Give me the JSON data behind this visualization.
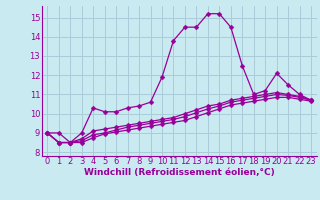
{
  "background_color": "#c8eaf0",
  "grid_color": "#aaccd8",
  "line_color": "#990099",
  "marker": "D",
  "marker_size": 2.5,
  "xlabel": "Windchill (Refroidissement éolien,°C)",
  "xlabel_fontsize": 6.5,
  "xlim": [
    -0.5,
    23.5
  ],
  "ylim": [
    7.8,
    15.6
  ],
  "yticks": [
    8,
    9,
    10,
    11,
    12,
    13,
    14,
    15
  ],
  "xticks": [
    0,
    1,
    2,
    3,
    4,
    5,
    6,
    7,
    8,
    9,
    10,
    11,
    12,
    13,
    14,
    15,
    16,
    17,
    18,
    19,
    20,
    21,
    22,
    23
  ],
  "tick_fontsize": 6.0,
  "curves": [
    {
      "x": [
        0,
        1,
        2,
        3,
        4,
        5,
        6,
        7,
        8,
        9,
        10,
        11,
        12,
        13,
        14,
        15,
        16,
        17,
        18,
        19,
        20,
        21,
        22,
        23
      ],
      "y": [
        9.0,
        9.0,
        8.5,
        9.0,
        10.3,
        10.1,
        10.1,
        10.3,
        10.4,
        10.6,
        11.9,
        13.8,
        14.5,
        14.5,
        15.2,
        15.2,
        14.5,
        12.5,
        11.0,
        11.2,
        12.1,
        11.5,
        11.0,
        10.7
      ]
    },
    {
      "x": [
        0,
        1,
        2,
        3,
        4,
        5,
        6,
        7,
        8,
        9,
        10,
        11,
        12,
        13,
        14,
        15,
        16,
        17,
        18,
        19,
        20,
        21,
        22,
        23
      ],
      "y": [
        9.0,
        8.5,
        8.5,
        8.7,
        9.1,
        9.2,
        9.3,
        9.4,
        9.5,
        9.6,
        9.7,
        9.8,
        10.0,
        10.2,
        10.4,
        10.5,
        10.7,
        10.8,
        10.9,
        11.0,
        11.1,
        11.0,
        10.9,
        10.7
      ]
    },
    {
      "x": [
        0,
        1,
        2,
        3,
        4,
        5,
        6,
        7,
        8,
        9,
        10,
        11,
        12,
        13,
        14,
        15,
        16,
        17,
        18,
        19,
        20,
        21,
        22,
        23
      ],
      "y": [
        9.0,
        8.5,
        8.5,
        8.6,
        8.9,
        9.0,
        9.15,
        9.3,
        9.4,
        9.5,
        9.6,
        9.7,
        9.85,
        10.05,
        10.25,
        10.4,
        10.6,
        10.7,
        10.8,
        10.9,
        11.0,
        10.95,
        10.85,
        10.7
      ]
    },
    {
      "x": [
        0,
        1,
        2,
        3,
        4,
        5,
        6,
        7,
        8,
        9,
        10,
        11,
        12,
        13,
        14,
        15,
        16,
        17,
        18,
        19,
        20,
        21,
        22,
        23
      ],
      "y": [
        9.0,
        8.5,
        8.5,
        8.5,
        8.75,
        8.95,
        9.05,
        9.15,
        9.25,
        9.35,
        9.45,
        9.55,
        9.65,
        9.85,
        10.05,
        10.25,
        10.45,
        10.55,
        10.65,
        10.75,
        10.85,
        10.85,
        10.75,
        10.65
      ]
    }
  ]
}
